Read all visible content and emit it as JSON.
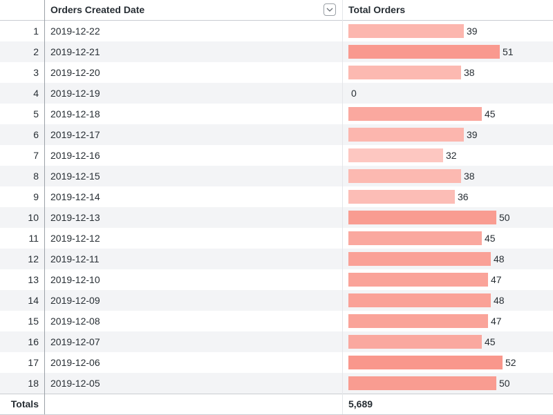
{
  "header": {
    "index_label": "",
    "date_label": "Orders Created Date",
    "orders_label": "Total Orders",
    "sort_icon": "chevron-down-icon"
  },
  "rows": [
    {
      "index": "1",
      "date": "2019-12-22",
      "orders": 39
    },
    {
      "index": "2",
      "date": "2019-12-21",
      "orders": 51
    },
    {
      "index": "3",
      "date": "2019-12-20",
      "orders": 38
    },
    {
      "index": "4",
      "date": "2019-12-19",
      "orders": 0
    },
    {
      "index": "5",
      "date": "2019-12-18",
      "orders": 45
    },
    {
      "index": "6",
      "date": "2019-12-17",
      "orders": 39
    },
    {
      "index": "7",
      "date": "2019-12-16",
      "orders": 32
    },
    {
      "index": "8",
      "date": "2019-12-15",
      "orders": 38
    },
    {
      "index": "9",
      "date": "2019-12-14",
      "orders": 36
    },
    {
      "index": "10",
      "date": "2019-12-13",
      "orders": 50
    },
    {
      "index": "11",
      "date": "2019-12-12",
      "orders": 45
    },
    {
      "index": "12",
      "date": "2019-12-11",
      "orders": 48
    },
    {
      "index": "13",
      "date": "2019-12-10",
      "orders": 47
    },
    {
      "index": "14",
      "date": "2019-12-09",
      "orders": 48
    },
    {
      "index": "15",
      "date": "2019-12-08",
      "orders": 47
    },
    {
      "index": "16",
      "date": "2019-12-07",
      "orders": 45
    },
    {
      "index": "17",
      "date": "2019-12-06",
      "orders": 52
    },
    {
      "index": "18",
      "date": "2019-12-05",
      "orders": 50
    }
  ],
  "totals": {
    "label": "Totals",
    "orders": "5,689"
  },
  "colors": {
    "bar_low": "#fdc7c1",
    "bar_high": "#f9978c",
    "stripe": "#f3f4f6"
  }
}
